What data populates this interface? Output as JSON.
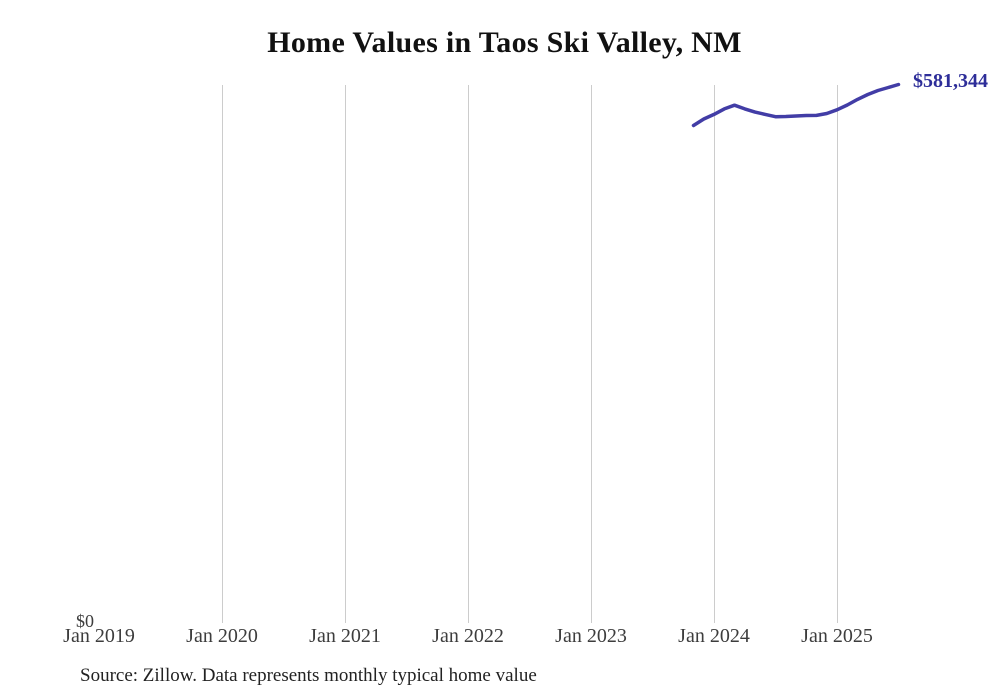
{
  "title": "Home Values in Taos Ski Valley, NM",
  "source_note": "Source: Zillow. Data represents monthly typical home value",
  "end_label": "$581,344",
  "y_axis": {
    "zero_label": "$0"
  },
  "x_axis": {
    "tick_labels": [
      "Jan 2019",
      "Jan 2020",
      "Jan 2021",
      "Jan 2022",
      "Jan 2023",
      "Jan 2024",
      "Jan 2025"
    ]
  },
  "colors": {
    "line": "#423da6",
    "end_label_text": "#2e2e99",
    "gridline": "#cccccc",
    "tick_label": "#3d3d3d",
    "title": "#111111",
    "source_text": "#222222",
    "background": "#ffffff"
  },
  "chart_data": {
    "type": "line",
    "title": "Home Values in Taos Ski Valley, NM",
    "series": [
      {
        "name": "Monthly typical home value",
        "x": [
          "Nov 2023",
          "Dec 2023",
          "Jan 2024",
          "Feb 2024",
          "Mar 2024",
          "Apr 2024",
          "May 2024",
          "Jun 2024",
          "Jul 2024",
          "Aug 2024",
          "Sep 2024",
          "Oct 2024",
          "Nov 2024",
          "Dec 2024",
          "Jan 2025",
          "Feb 2025",
          "Mar 2025",
          "Apr 2025",
          "May 2025",
          "Jun 2025",
          "Jul 2025"
        ],
        "values": [
          537000,
          544000,
          549000,
          555000,
          559000,
          555000,
          551500,
          549000,
          546500,
          546700,
          547300,
          547800,
          547900,
          550000,
          554000,
          559200,
          565200,
          570500,
          574900,
          578100,
          581344
        ]
      }
    ],
    "last_value_label": "$581,344",
    "xlabel": "",
    "ylabel": "",
    "x_axis_range": [
      "Jan 2019",
      "Jul 2025"
    ],
    "x_tick_labels": [
      "Jan 2019",
      "Jan 2020",
      "Jan 2021",
      "Jan 2022",
      "Jan 2023",
      "Jan 2024",
      "Jan 2025"
    ],
    "ylim": [
      0,
      582000
    ],
    "y_tick_labels": [
      "$0"
    ],
    "grid": "vertical-year-gridlines-2020-2025",
    "legend": "none"
  }
}
